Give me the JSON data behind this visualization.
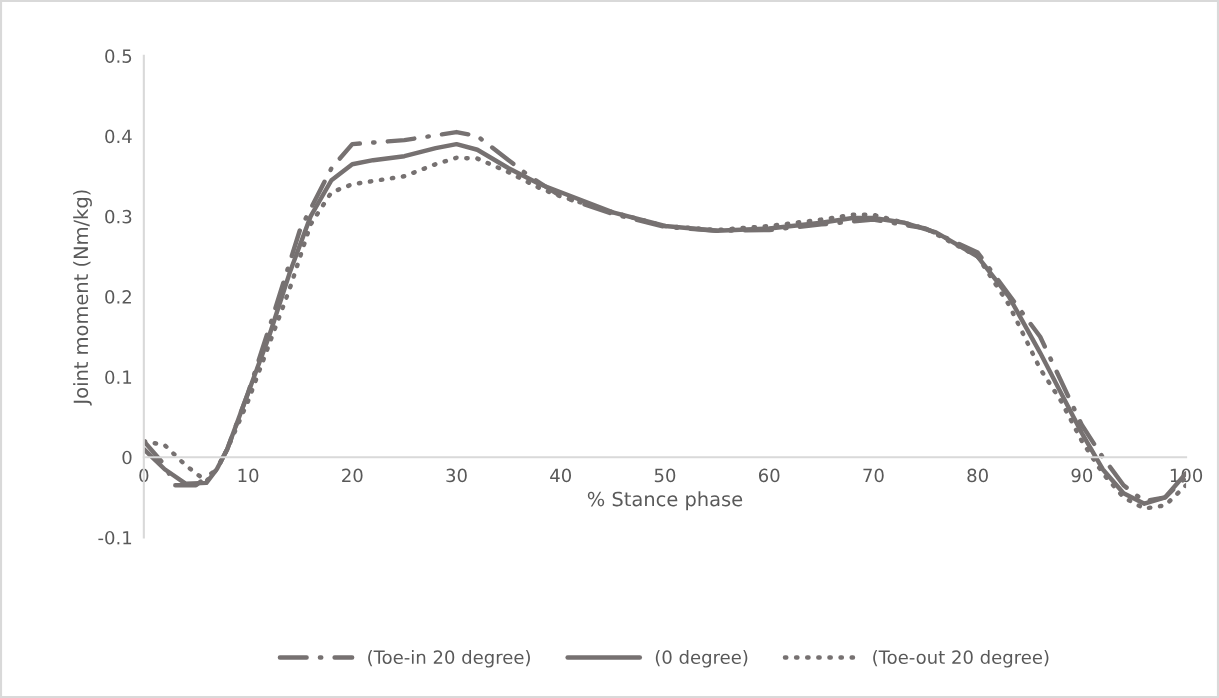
{
  "chart_data": {
    "type": "line",
    "xlabel": "% Stance phase",
    "ylabel": "Joint moment (Nm/kg)",
    "xlim": [
      0,
      100
    ],
    "xticks": [
      0,
      10,
      20,
      30,
      40,
      50,
      60,
      70,
      80,
      90,
      100
    ],
    "ylim": [
      -0.1,
      0.5
    ],
    "yticks": [
      -0.1,
      0,
      0.1,
      0.2,
      0.3,
      0.4,
      0.5
    ],
    "grid": false,
    "legend": "bottom",
    "marker": "none",
    "series": [
      {
        "name": "(Toe-in 20 degree)",
        "color": "#767171",
        "line_style": "dashed",
        "x": [
          0,
          2,
          3,
          5,
          7,
          8,
          10,
          12,
          15,
          18,
          20,
          25,
          30,
          32,
          35,
          37,
          40,
          45,
          50,
          55,
          60,
          65,
          70,
          75,
          80,
          82,
          86,
          90,
          92,
          94,
          96,
          98,
          100
        ],
        "values": [
          0.02,
          -0.01,
          -0.035,
          -0.035,
          -0.015,
          0.01,
          0.08,
          0.16,
          0.284,
          0.36,
          0.39,
          0.395,
          0.405,
          0.4,
          0.37,
          0.35,
          0.325,
          0.303,
          0.287,
          0.282,
          0.283,
          0.29,
          0.296,
          0.285,
          0.255,
          0.22,
          0.15,
          0.04,
          0.0,
          -0.035,
          -0.055,
          -0.05,
          -0.025
        ]
      },
      {
        "name": "(0 degree)",
        "color": "#767171",
        "line_style": "solid",
        "x": [
          0,
          2,
          4,
          6,
          7,
          8,
          10,
          12,
          14,
          16,
          18,
          20,
          22,
          25,
          28,
          30,
          32,
          35,
          38,
          40,
          45,
          50,
          55,
          60,
          65,
          68,
          70,
          73,
          76,
          80,
          83,
          86,
          88,
          90,
          92,
          94,
          96,
          98,
          100
        ],
        "values": [
          0.01,
          -0.015,
          -0.033,
          -0.032,
          -0.015,
          0.01,
          0.08,
          0.15,
          0.23,
          0.3,
          0.345,
          0.365,
          0.37,
          0.375,
          0.385,
          0.39,
          0.383,
          0.36,
          0.34,
          0.33,
          0.305,
          0.288,
          0.282,
          0.285,
          0.292,
          0.298,
          0.298,
          0.292,
          0.28,
          0.25,
          0.2,
          0.13,
          0.08,
          0.03,
          -0.015,
          -0.045,
          -0.058,
          -0.05,
          -0.02
        ]
      },
      {
        "name": "(Toe-out 20 degree)",
        "color": "#767171",
        "line_style": "dotted",
        "x": [
          0,
          2,
          4,
          6,
          7,
          8,
          10,
          12,
          14,
          16,
          18,
          20,
          25,
          28,
          30,
          32,
          35,
          38,
          40,
          45,
          50,
          55,
          60,
          65,
          68,
          70,
          75,
          80,
          83,
          86,
          88,
          90,
          92,
          94,
          96,
          98,
          100
        ],
        "values": [
          0.02,
          0.015,
          -0.01,
          -0.03,
          -0.015,
          0.01,
          0.07,
          0.14,
          0.21,
          0.29,
          0.33,
          0.34,
          0.35,
          0.365,
          0.373,
          0.372,
          0.355,
          0.335,
          0.325,
          0.305,
          0.288,
          0.283,
          0.288,
          0.296,
          0.302,
          0.302,
          0.285,
          0.25,
          0.19,
          0.11,
          0.07,
          0.02,
          -0.02,
          -0.05,
          -0.064,
          -0.06,
          -0.035
        ]
      }
    ]
  }
}
